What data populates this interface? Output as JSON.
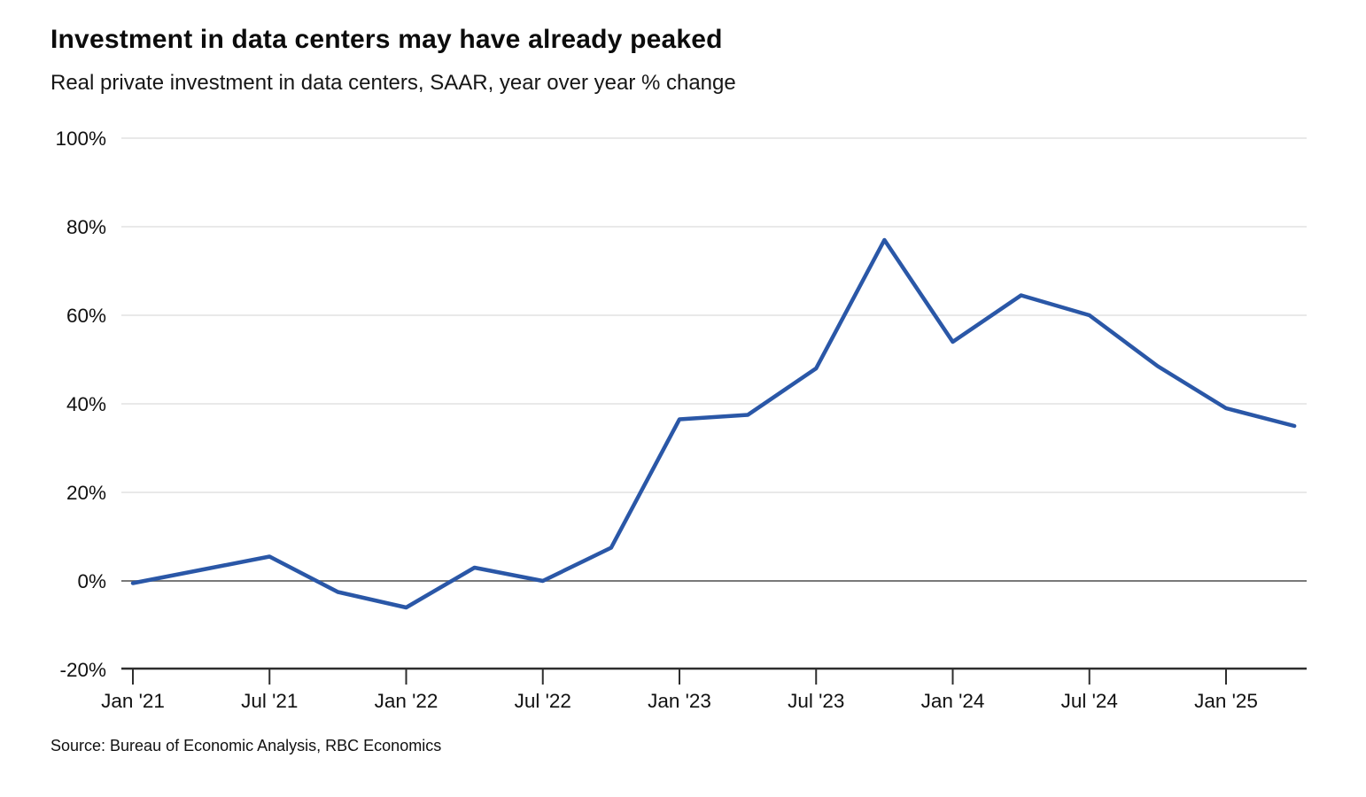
{
  "chart_data": {
    "type": "line",
    "title": "Investment in data centers may have already peaked",
    "subtitle": "Real private investment in data centers, SAAR, year over year % change",
    "source": "Source: Bureau of Economic Analysis, RBC Economics",
    "categories": [
      "Jan '21",
      "Apr '21",
      "Jul '21",
      "Oct '21",
      "Jan '22",
      "Apr '22",
      "Jul '22",
      "Oct '22",
      "Jan '23",
      "Apr '23",
      "Jul '23",
      "Oct '23",
      "Jan '24",
      "Apr '24",
      "Jul '24",
      "Oct '24",
      "Jan '25",
      "Apr '25"
    ],
    "values": [
      -0.5,
      2.5,
      5.5,
      -2.5,
      -6,
      3,
      0,
      7.5,
      36.5,
      37.5,
      48,
      77,
      54,
      64.5,
      60,
      48.5,
      39,
      35
    ],
    "xlabel": "",
    "ylabel": "",
    "ylim": [
      -20,
      100
    ],
    "x_tick_labels": [
      "Jan '21",
      "Jul '21",
      "Jan '22",
      "Jul '22",
      "Jan '23",
      "Jul '23",
      "Jan '24",
      "Jul '24",
      "Jan '25"
    ],
    "x_tick_every": 2,
    "y_ticks": [
      {
        "value": 100,
        "label": "100%"
      },
      {
        "value": 80,
        "label": "80%"
      },
      {
        "value": 60,
        "label": "60%"
      },
      {
        "value": 40,
        "label": "40%"
      },
      {
        "value": 20,
        "label": "20%"
      },
      {
        "value": 0,
        "label": "0%"
      },
      {
        "value": -20,
        "label": "-20%"
      }
    ],
    "grid": true,
    "legend": "none",
    "colors": {
      "line": "#2A57A7",
      "gridline": "#E2E2E2",
      "zero_line": "#666666",
      "axis": "#2D2D2D",
      "text": "#111111"
    }
  }
}
